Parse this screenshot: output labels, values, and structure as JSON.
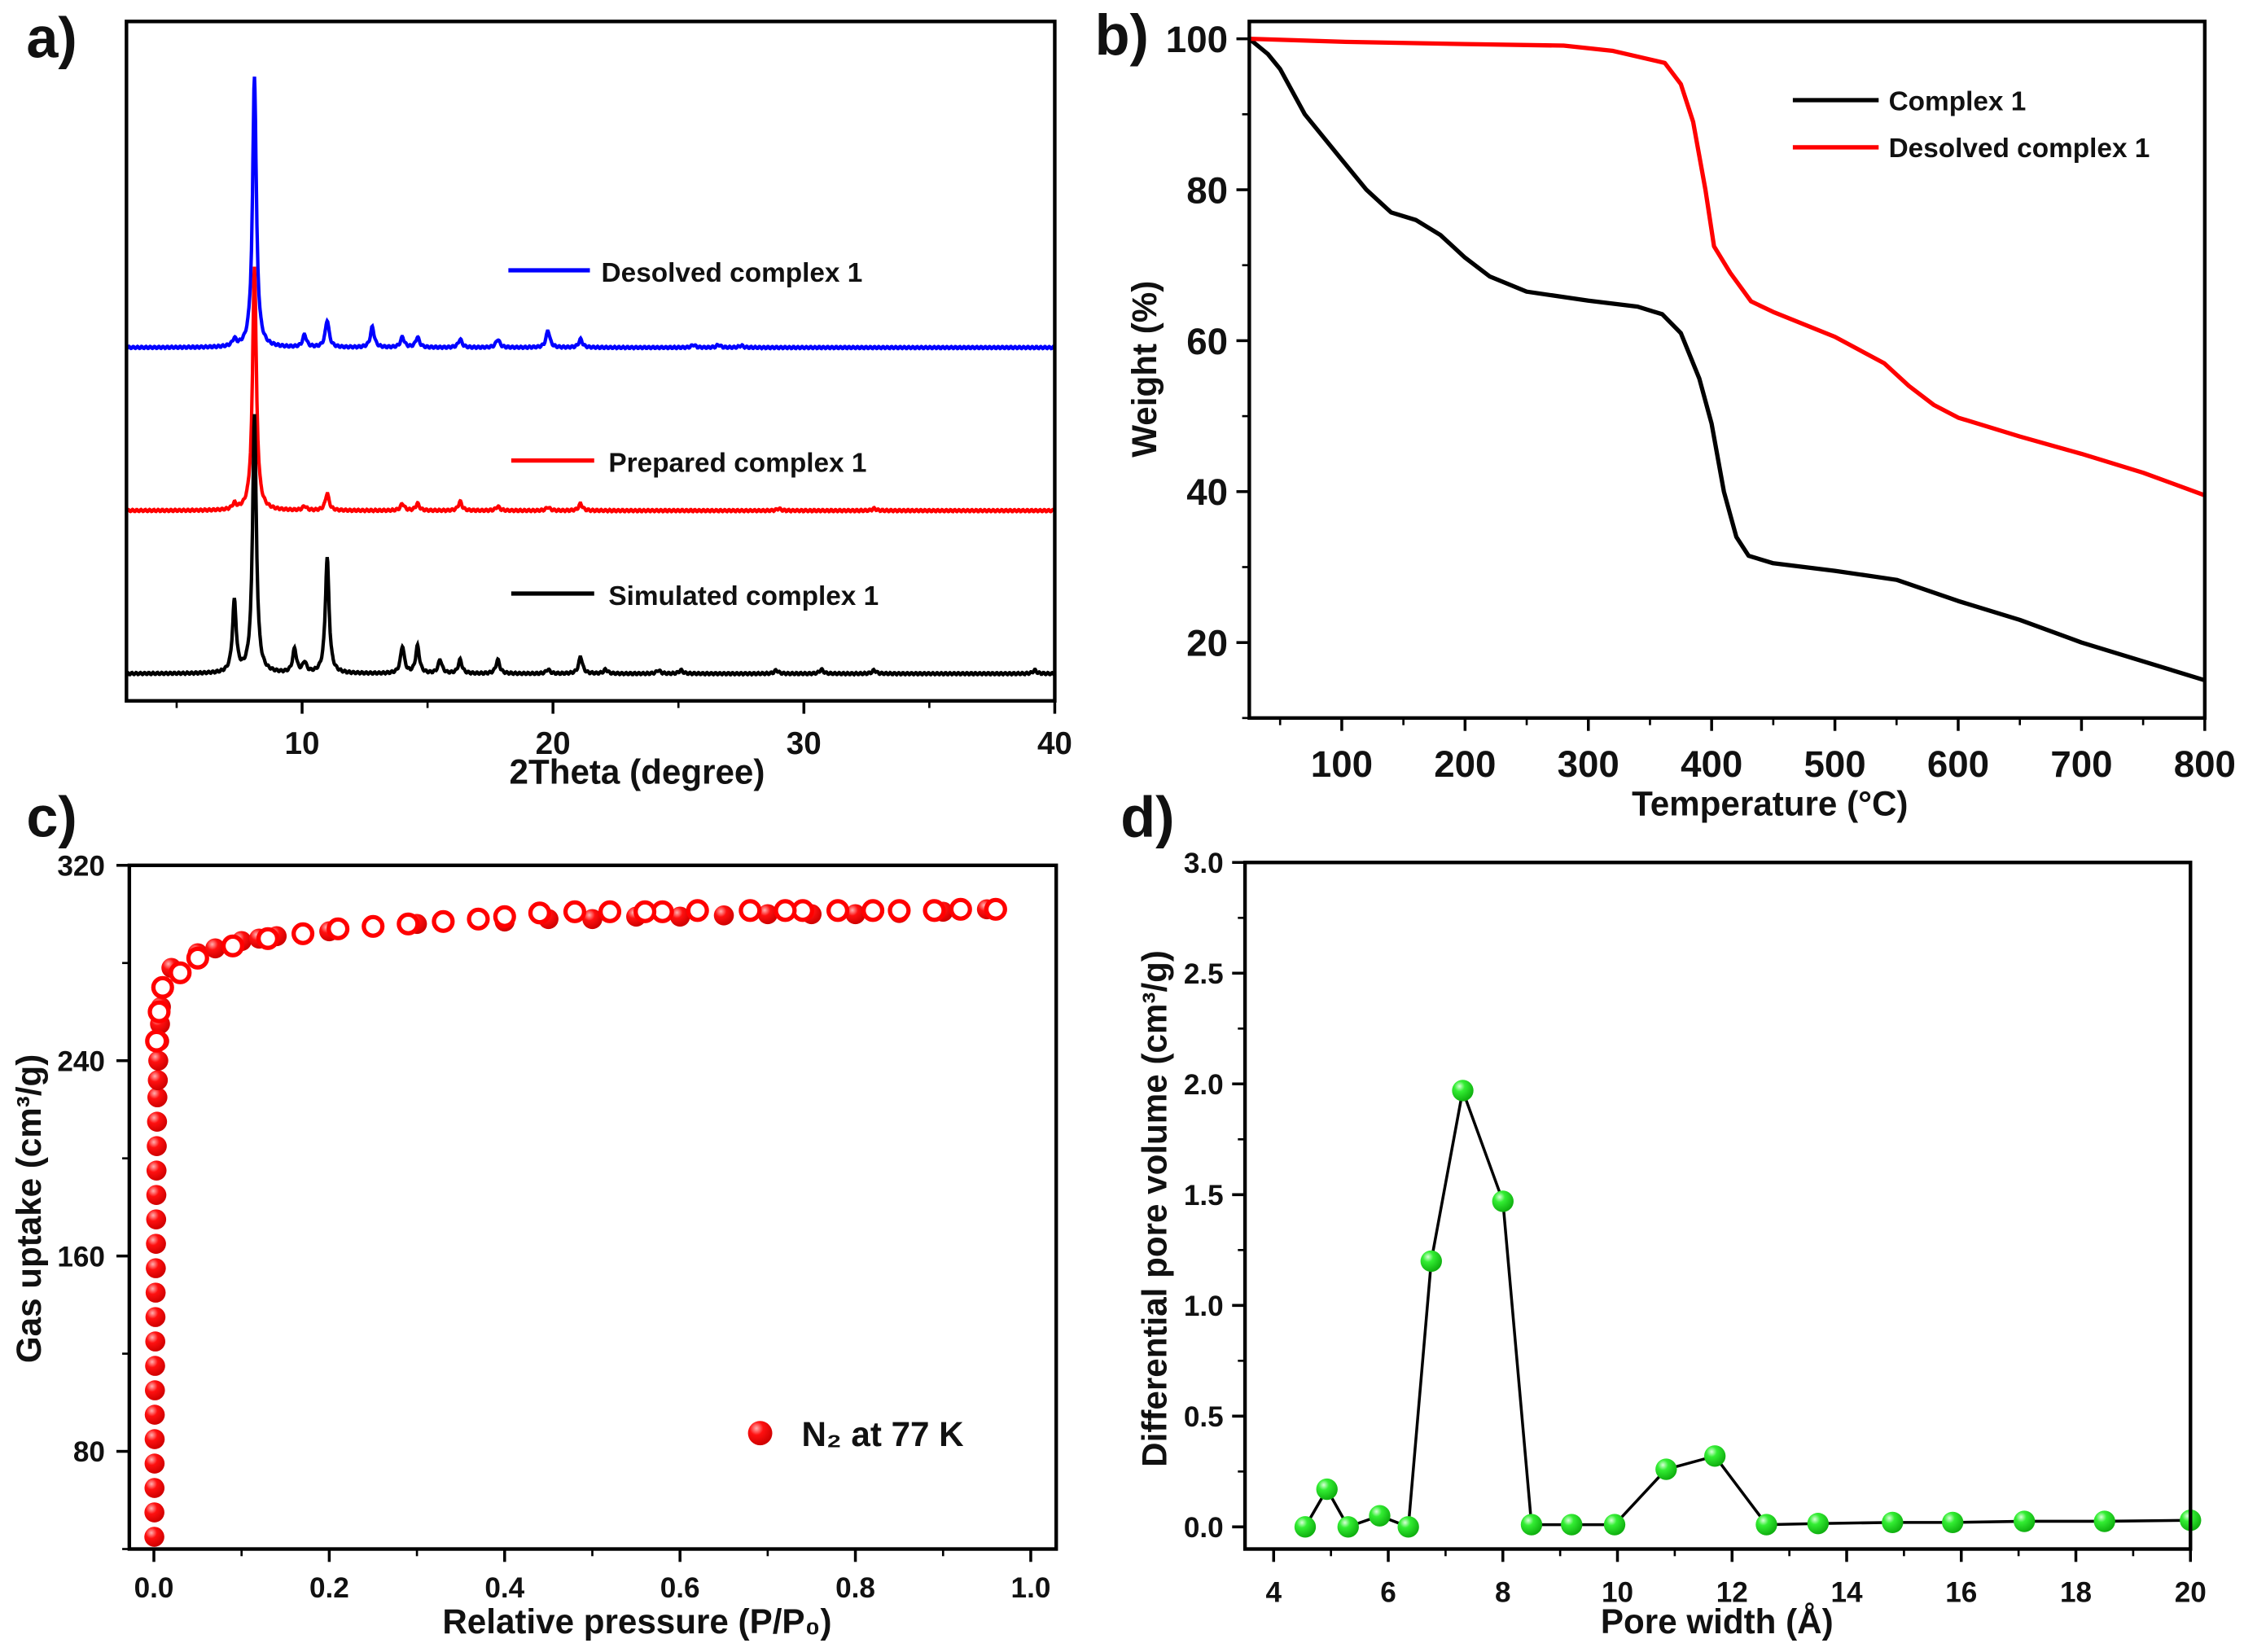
{
  "chart_data": [
    {
      "panel_label": "a)",
      "type": "line",
      "xlabel": "2Theta (degree)",
      "ylabel": "",
      "xlim": [
        3,
        40
      ],
      "ylim": [
        0,
        100
      ],
      "xticks": [
        10,
        20,
        30,
        40
      ],
      "grid": false,
      "legend_placement": "inline-right",
      "series": [
        {
          "name": "Desolved complex 1",
          "color": "#0000ff",
          "baseline": 52,
          "peaks": [
            [
              7.3,
              1
            ],
            [
              8.1,
              40
            ],
            [
              10.1,
              1.8
            ],
            [
              11.0,
              4
            ],
            [
              12.8,
              3
            ],
            [
              14.0,
              1.5
            ],
            [
              14.6,
              1.5
            ],
            [
              16.3,
              1.2
            ],
            [
              17.8,
              1.2
            ],
            [
              19.8,
              2.5
            ],
            [
              21.1,
              1.2
            ],
            [
              25.6,
              0.4
            ],
            [
              26.6,
              0.4
            ],
            [
              27.5,
              0.3
            ]
          ]
        },
        {
          "name": "Prepared complex 1",
          "color": "#ff0000",
          "baseline": 28,
          "peaks": [
            [
              7.3,
              0.8
            ],
            [
              8.1,
              36
            ],
            [
              10.1,
              0.6
            ],
            [
              11.0,
              2.5
            ],
            [
              14.0,
              1
            ],
            [
              14.6,
              1
            ],
            [
              16.3,
              1.3
            ],
            [
              17.8,
              0.6
            ],
            [
              19.8,
              0.5
            ],
            [
              21.1,
              1
            ],
            [
              29,
              0.3
            ],
            [
              32.8,
              0.3
            ]
          ]
        },
        {
          "name": "Simulated complex 1",
          "color": "#000000",
          "baseline": 4,
          "peaks": [
            [
              7.3,
              10.5
            ],
            [
              8.1,
              38
            ],
            [
              9.7,
              3.5
            ],
            [
              10.1,
              1.5
            ],
            [
              11.0,
              17
            ],
            [
              14.0,
              4
            ],
            [
              14.6,
              4
            ],
            [
              15.5,
              2
            ],
            [
              16.3,
              2
            ],
            [
              17.8,
              2
            ],
            [
              19.8,
              0.6
            ],
            [
              21.1,
              2.5
            ],
            [
              22.1,
              0.6
            ],
            [
              24.2,
              0.5
            ],
            [
              25.1,
              0.5
            ],
            [
              28.9,
              0.5
            ],
            [
              30.7,
              0.6
            ],
            [
              32.8,
              0.5
            ],
            [
              39.2,
              0.5
            ]
          ]
        }
      ]
    },
    {
      "panel_label": "b)",
      "type": "line",
      "xlabel": "Temperature (°C)",
      "ylabel": "Weight (%)",
      "xlim": [
        25,
        800
      ],
      "ylim": [
        10,
        102.3
      ],
      "xticks": [
        100,
        200,
        300,
        400,
        500,
        600,
        700,
        800
      ],
      "yticks": [
        20,
        40,
        60,
        80,
        100
      ],
      "grid": false,
      "legend_placement": "top-right",
      "series": [
        {
          "name": "Complex 1",
          "color": "#000000",
          "x": [
            25,
            40,
            50,
            70,
            100,
            120,
            140,
            160,
            180,
            200,
            220,
            250,
            300,
            340,
            360,
            375,
            390,
            400,
            410,
            420,
            430,
            450,
            500,
            550,
            600,
            650,
            700,
            800
          ],
          "y": [
            100,
            98,
            96,
            90,
            84,
            80,
            77,
            76,
            74,
            71,
            68.5,
            66.5,
            65.3,
            64.5,
            63.5,
            61,
            55,
            49,
            40,
            34,
            31.5,
            30.5,
            29.5,
            28.3,
            25.5,
            23,
            20,
            15
          ]
        },
        {
          "name": "Desolved complex 1",
          "color": "#ff0000",
          "x": [
            25,
            100,
            200,
            280,
            320,
            362,
            375,
            385,
            395,
            402,
            415,
            432,
            450,
            500,
            540,
            560,
            580,
            600,
            650,
            700,
            750,
            800
          ],
          "y": [
            100,
            99.6,
            99.3,
            99.1,
            98.4,
            96.8,
            94,
            89,
            80,
            72.5,
            69,
            65.2,
            63.8,
            60.5,
            57,
            54,
            51.5,
            49.8,
            47.3,
            45,
            42.5,
            39.5
          ]
        }
      ]
    },
    {
      "panel_label": "c)",
      "type": "scatter",
      "xlabel": "Relative pressure (P/P₀)",
      "ylabel": "Gas uptake (cm³/g)",
      "xlim": [
        -0.028,
        1.029
      ],
      "ylim": [
        40,
        320
      ],
      "xticks": [
        0.0,
        0.2,
        0.4,
        0.6,
        0.8,
        1.0
      ],
      "yticks": [
        80,
        160,
        240,
        320
      ],
      "grid": false,
      "legend_placement": "bottom-right",
      "legend_label": "N₂ at 77 K",
      "color": "#ff0000",
      "series": [
        {
          "role": "adsorption",
          "marker": "filled",
          "x": [
            0.0005,
            0.0006,
            0.0007,
            0.0008,
            0.0009,
            0.001,
            0.0012,
            0.0014,
            0.0016,
            0.0018,
            0.002,
            0.0022,
            0.0024,
            0.0026,
            0.0028,
            0.003,
            0.0033,
            0.0036,
            0.004,
            0.0045,
            0.005,
            0.006,
            0.007,
            0.008,
            0.01,
            0.02,
            0.05,
            0.07,
            0.1,
            0.12,
            0.14,
            0.2,
            0.25,
            0.3,
            0.4,
            0.45,
            0.5,
            0.55,
            0.6,
            0.65,
            0.7,
            0.75,
            0.8,
            0.85,
            0.9,
            0.95
          ],
          "y": [
            45,
            55,
            65,
            75,
            85,
            95,
            105,
            115,
            125,
            135,
            145,
            155,
            165,
            175,
            185,
            195,
            205,
            215,
            225,
            232,
            240,
            248,
            255,
            262,
            270,
            278,
            284,
            286,
            289,
            290,
            291,
            293,
            295,
            296,
            297,
            298,
            298,
            299,
            299,
            299.5,
            300,
            300,
            300,
            300.5,
            301,
            302
          ]
        },
        {
          "role": "desorption",
          "marker": "open",
          "x": [
            0.96,
            0.92,
            0.89,
            0.85,
            0.82,
            0.78,
            0.74,
            0.72,
            0.68,
            0.62,
            0.58,
            0.56,
            0.52,
            0.48,
            0.44,
            0.4,
            0.37,
            0.33,
            0.29,
            0.25,
            0.21,
            0.17,
            0.13,
            0.09,
            0.05,
            0.03,
            0.01,
            0.006,
            0.003
          ],
          "y": [
            302,
            302,
            301.5,
            301.5,
            301.5,
            301.5,
            301.5,
            301.5,
            301.5,
            301.5,
            301,
            301,
            301,
            301,
            300.5,
            299,
            298,
            297,
            296,
            295,
            294,
            292,
            290,
            287,
            282,
            276,
            270,
            260,
            248
          ]
        }
      ]
    },
    {
      "panel_label": "d)",
      "type": "line",
      "xlabel": "Pore width (Å)",
      "ylabel": "Differential pore volume (cm³/g)",
      "xlim": [
        3.5,
        20
      ],
      "ylim": [
        -0.1,
        3.0
      ],
      "xticks": [
        4,
        6,
        8,
        10,
        12,
        14,
        16,
        18,
        20
      ],
      "yticks": [
        0.0,
        0.5,
        1.0,
        1.5,
        2.0,
        2.5,
        3.0
      ],
      "grid": false,
      "marker_color": "#22e022",
      "x": [
        4.55,
        4.93,
        5.3,
        5.85,
        6.35,
        6.75,
        7.3,
        8.0,
        8.5,
        9.2,
        9.95,
        10.85,
        11.7,
        12.6,
        13.5,
        14.8,
        15.85,
        17.1,
        18.5,
        20.0
      ],
      "y": [
        0,
        0.17,
        0,
        0.05,
        0,
        1.2,
        1.97,
        1.47,
        0.01,
        0.01,
        0.01,
        0.26,
        0.32,
        0.01,
        0.015,
        0.02,
        0.02,
        0.025,
        0.025,
        0.03
      ]
    }
  ]
}
